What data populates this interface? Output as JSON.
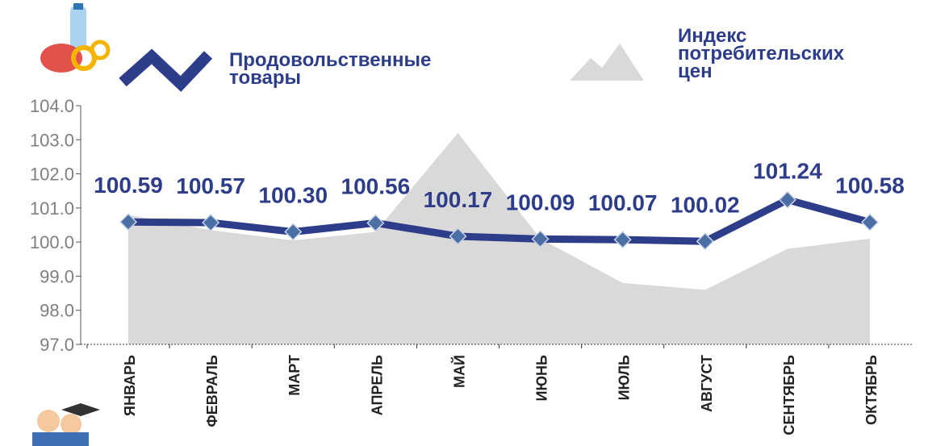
{
  "chart_data": {
    "type": "line",
    "categories": [
      "ЯНВАРЬ",
      "ФЕВРАЛЬ",
      "МАРТ",
      "АПРЕЛЬ",
      "МАЙ",
      "ИЮНЬ",
      "ИЮЛЬ",
      "АВГУСТ",
      "СЕНТЯБРЬ",
      "ОКТЯБРЬ"
    ],
    "series": [
      {
        "name": "Продовольственные товары",
        "color": "#2e3d8a",
        "kind": "line",
        "values": [
          100.59,
          100.57,
          100.3,
          100.56,
          100.17,
          100.09,
          100.07,
          100.02,
          101.24,
          100.58
        ],
        "value_labels": [
          "100.59",
          "100.57",
          "100.30",
          "100.56",
          "100.17",
          "100.09",
          "100.07",
          "100.02",
          "101.24",
          "100.58"
        ]
      },
      {
        "name": "Индекс потребительских цен",
        "color": "#d9d9d9",
        "kind": "area",
        "values": [
          100.8,
          100.35,
          100.05,
          100.3,
          103.2,
          100.1,
          98.8,
          98.6,
          99.8,
          100.1
        ]
      }
    ],
    "ylim": [
      97,
      104
    ],
    "yticks": [
      {
        "value": 97,
        "label": "97.0"
      },
      {
        "value": 98,
        "label": "98.0"
      },
      {
        "value": 99,
        "label": "99.0"
      },
      {
        "value": 100,
        "label": "100.0"
      },
      {
        "value": 101,
        "label": "101.0"
      },
      {
        "value": 102,
        "label": "102.0"
      },
      {
        "value": 103,
        "label": "103.0"
      },
      {
        "value": 104,
        "label": "104.0"
      }
    ]
  }
}
